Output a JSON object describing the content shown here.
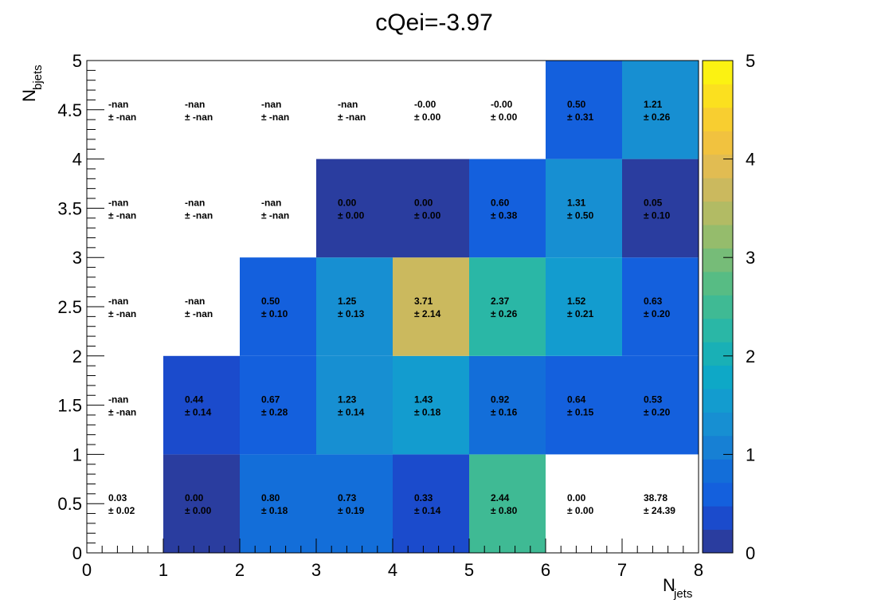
{
  "chart_data": {
    "type": "heatmap",
    "title": "cQei=-3.97",
    "xlabel": {
      "main": "N",
      "sub": "jets"
    },
    "ylabel": {
      "main": "N",
      "sub": "bjets"
    },
    "xlim": [
      0,
      8
    ],
    "ylim": [
      0,
      5
    ],
    "zlim": [
      0,
      5
    ],
    "x_tick_labels": [
      "0",
      "1",
      "2",
      "3",
      "4",
      "5",
      "6",
      "7",
      "8"
    ],
    "y_tick_labels": [
      "0",
      "0.5",
      "1",
      "1.5",
      "2",
      "2.5",
      "3",
      "3.5",
      "4",
      "4.5",
      "5"
    ],
    "z_tick_labels": [
      "0",
      "1",
      "2",
      "3",
      "4",
      "5"
    ],
    "x_bins": [
      0,
      1,
      2,
      3,
      4,
      5,
      6,
      7,
      8
    ],
    "y_bins": [
      0,
      1,
      2,
      3,
      4,
      5
    ],
    "cells": [
      {
        "x": 0,
        "y": 0,
        "value": "0.03",
        "error": "± 0.02",
        "z": 0.03,
        "filled": false
      },
      {
        "x": 1,
        "y": 0,
        "value": "0.00",
        "error": "± 0.00",
        "z": 0.0,
        "filled": true
      },
      {
        "x": 2,
        "y": 0,
        "value": "0.80",
        "error": "± 0.18",
        "z": 0.8,
        "filled": true
      },
      {
        "x": 3,
        "y": 0,
        "value": "0.73",
        "error": "± 0.19",
        "z": 0.73,
        "filled": true
      },
      {
        "x": 4,
        "y": 0,
        "value": "0.33",
        "error": "± 0.14",
        "z": 0.33,
        "filled": true
      },
      {
        "x": 5,
        "y": 0,
        "value": "2.44",
        "error": "± 0.80",
        "z": 2.44,
        "filled": true
      },
      {
        "x": 6,
        "y": 0,
        "value": "0.00",
        "error": "± 0.00",
        "z": 0.0,
        "filled": false
      },
      {
        "x": 7,
        "y": 0,
        "value": "38.78",
        "error": "± 24.39",
        "z": 38.78,
        "filled": false
      },
      {
        "x": 0,
        "y": 1,
        "value": "-nan",
        "error": "± -nan",
        "z": null,
        "filled": false
      },
      {
        "x": 1,
        "y": 1,
        "value": "0.44",
        "error": "± 0.14",
        "z": 0.44,
        "filled": true
      },
      {
        "x": 2,
        "y": 1,
        "value": "0.67",
        "error": "± 0.28",
        "z": 0.67,
        "filled": true
      },
      {
        "x": 3,
        "y": 1,
        "value": "1.23",
        "error": "± 0.14",
        "z": 1.23,
        "filled": true
      },
      {
        "x": 4,
        "y": 1,
        "value": "1.43",
        "error": "± 0.18",
        "z": 1.43,
        "filled": true
      },
      {
        "x": 5,
        "y": 1,
        "value": "0.92",
        "error": "± 0.16",
        "z": 0.92,
        "filled": true
      },
      {
        "x": 6,
        "y": 1,
        "value": "0.64",
        "error": "± 0.15",
        "z": 0.64,
        "filled": true
      },
      {
        "x": 7,
        "y": 1,
        "value": "0.53",
        "error": "± 0.20",
        "z": 0.53,
        "filled": true
      },
      {
        "x": 0,
        "y": 2,
        "value": "-nan",
        "error": "± -nan",
        "z": null,
        "filled": false
      },
      {
        "x": 1,
        "y": 2,
        "value": "-nan",
        "error": "± -nan",
        "z": null,
        "filled": false
      },
      {
        "x": 2,
        "y": 2,
        "value": "0.50",
        "error": "± 0.10",
        "z": 0.5,
        "filled": true
      },
      {
        "x": 3,
        "y": 2,
        "value": "1.25",
        "error": "± 0.13",
        "z": 1.25,
        "filled": true
      },
      {
        "x": 4,
        "y": 2,
        "value": "3.71",
        "error": "± 2.14",
        "z": 3.71,
        "filled": true
      },
      {
        "x": 5,
        "y": 2,
        "value": "2.37",
        "error": "± 0.26",
        "z": 2.37,
        "filled": true
      },
      {
        "x": 6,
        "y": 2,
        "value": "1.52",
        "error": "± 0.21",
        "z": 1.52,
        "filled": true
      },
      {
        "x": 7,
        "y": 2,
        "value": "0.63",
        "error": "± 0.20",
        "z": 0.63,
        "filled": true
      },
      {
        "x": 0,
        "y": 3,
        "value": "-nan",
        "error": "± -nan",
        "z": null,
        "filled": false
      },
      {
        "x": 1,
        "y": 3,
        "value": "-nan",
        "error": "± -nan",
        "z": null,
        "filled": false
      },
      {
        "x": 2,
        "y": 3,
        "value": "-nan",
        "error": "± -nan",
        "z": null,
        "filled": false
      },
      {
        "x": 3,
        "y": 3,
        "value": "0.00",
        "error": "± 0.00",
        "z": 0.0,
        "filled": true
      },
      {
        "x": 4,
        "y": 3,
        "value": "0.00",
        "error": "± 0.00",
        "z": 0.0,
        "filled": true
      },
      {
        "x": 5,
        "y": 3,
        "value": "0.60",
        "error": "± 0.38",
        "z": 0.6,
        "filled": true
      },
      {
        "x": 6,
        "y": 3,
        "value": "1.31",
        "error": "± 0.50",
        "z": 1.31,
        "filled": true
      },
      {
        "x": 7,
        "y": 3,
        "value": "0.05",
        "error": "± 0.10",
        "z": 0.05,
        "filled": true
      },
      {
        "x": 0,
        "y": 4,
        "value": "-nan",
        "error": "± -nan",
        "z": null,
        "filled": false
      },
      {
        "x": 1,
        "y": 4,
        "value": "-nan",
        "error": "± -nan",
        "z": null,
        "filled": false
      },
      {
        "x": 2,
        "y": 4,
        "value": "-nan",
        "error": "± -nan",
        "z": null,
        "filled": false
      },
      {
        "x": 3,
        "y": 4,
        "value": "-nan",
        "error": "± -nan",
        "z": null,
        "filled": false
      },
      {
        "x": 4,
        "y": 4,
        "value": "-0.00",
        "error": "± 0.00",
        "z": 0.0,
        "filled": false
      },
      {
        "x": 5,
        "y": 4,
        "value": "-0.00",
        "error": "± 0.00",
        "z": 0.0,
        "filled": false
      },
      {
        "x": 6,
        "y": 4,
        "value": "0.50",
        "error": "± 0.31",
        "z": 0.5,
        "filled": true
      },
      {
        "x": 7,
        "y": 4,
        "value": "1.21",
        "error": "± 0.26",
        "z": 1.21,
        "filled": true
      }
    ],
    "palette": [
      "#2a3d9f",
      "#1b4bcc",
      "#1460dd",
      "#136ed9",
      "#1780d4",
      "#178fd2",
      "#139ccf",
      "#0ea8c7",
      "#19b0b6",
      "#2ab7a6",
      "#3fba94",
      "#57bc84",
      "#76bc78",
      "#95bc6c",
      "#b2bb64",
      "#cbb95e",
      "#e1bc52",
      "#f1c23f",
      "#f8ce30",
      "#fbe01f",
      "#fbf212"
    ],
    "grid": false
  }
}
